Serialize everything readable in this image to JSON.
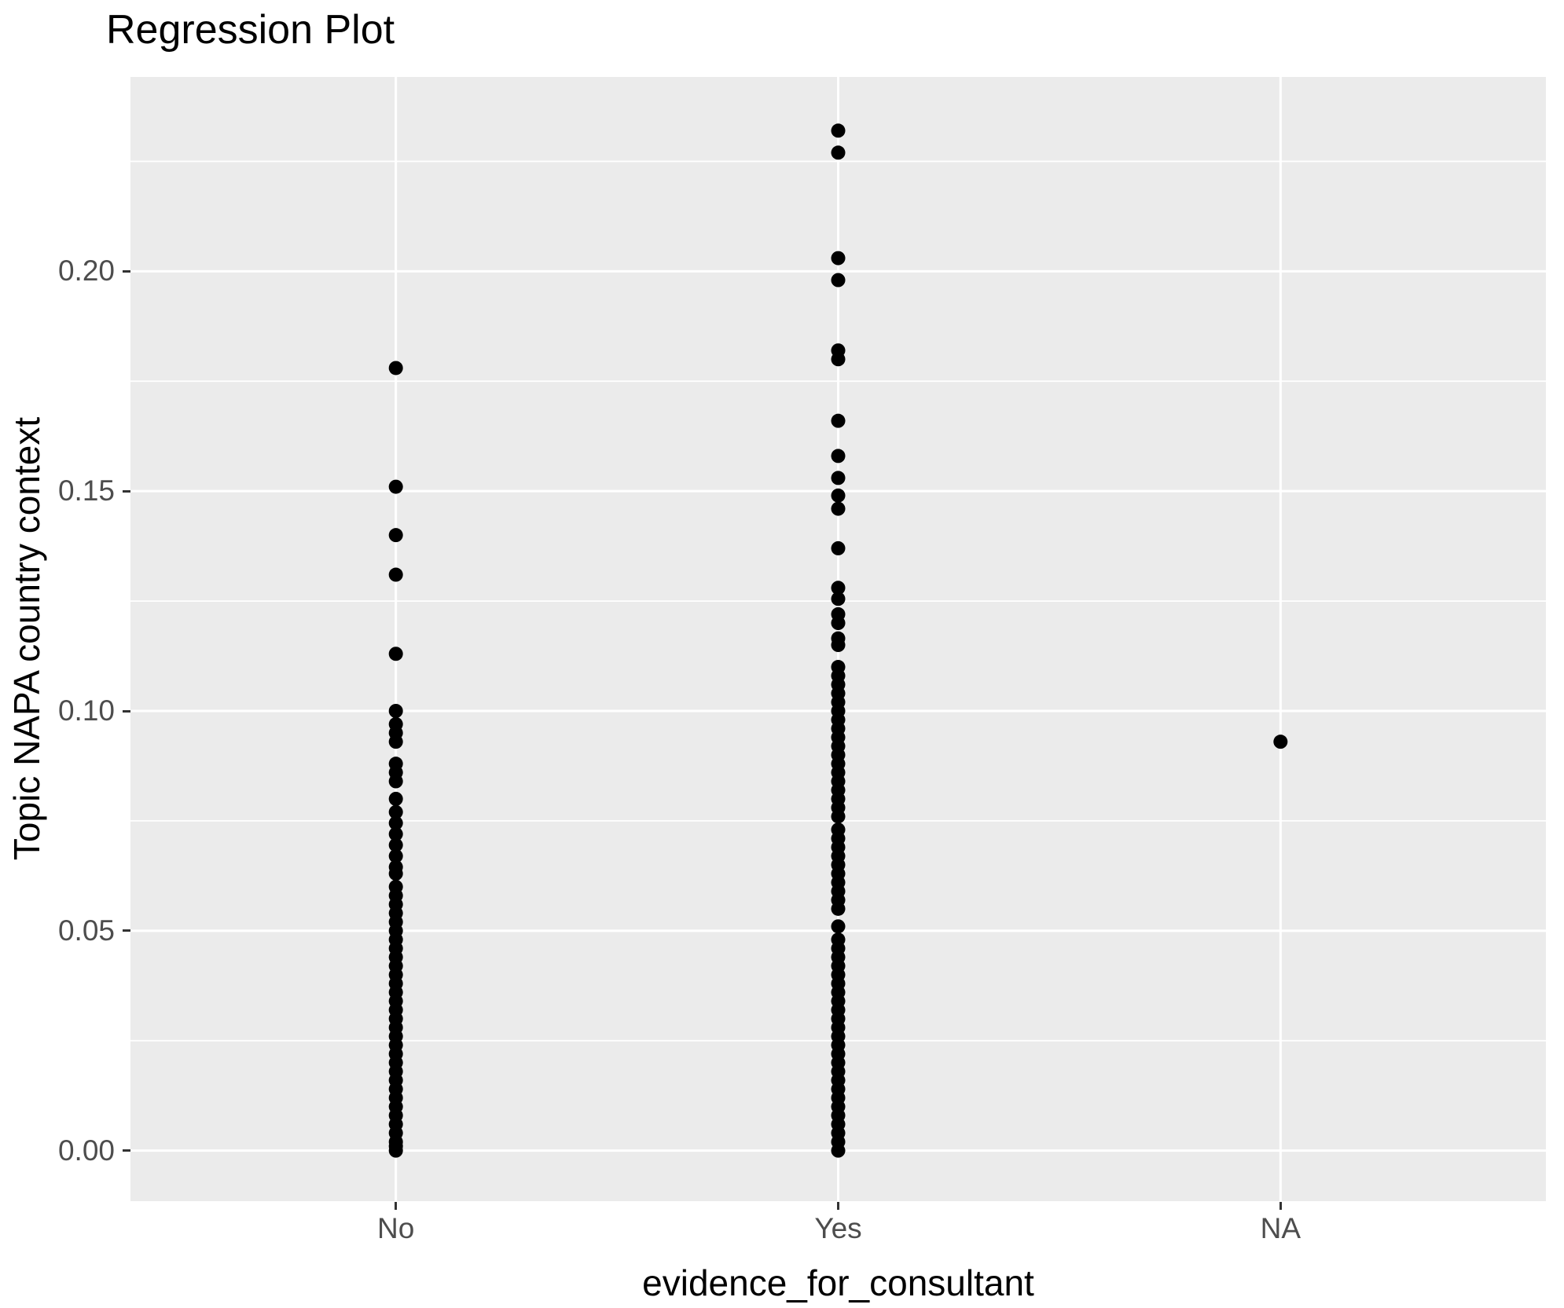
{
  "chart_data": {
    "type": "scatter",
    "title": "Regression Plot",
    "xlabel": "evidence_for_consultant",
    "ylabel": "Topic NAPA country context",
    "categories": [
      "No",
      "Yes",
      "NA"
    ],
    "y_ticks": [
      0.0,
      0.05,
      0.1,
      0.15,
      0.2
    ],
    "y_tick_labels": [
      "0.00",
      "0.05",
      "0.10",
      "0.15",
      "0.20"
    ],
    "y_minor": [
      0.025,
      0.075,
      0.125,
      0.175,
      0.225
    ],
    "ylim": [
      -0.0115,
      0.2442
    ],
    "grid": "horizontal major+minor and vertical category gridlines, white on gray panel",
    "legend": "none",
    "point_radius_px": 9,
    "series": [
      {
        "name": "No",
        "values": [
          0.178,
          0.151,
          0.14,
          0.131,
          0.113,
          0.1,
          0.097,
          0.095,
          0.093,
          0.088,
          0.086,
          0.084,
          0.08,
          0.077,
          0.0745,
          0.072,
          0.0695,
          0.067,
          0.0645,
          0.063,
          0.06,
          0.058,
          0.056,
          0.054,
          0.052,
          0.05,
          0.048,
          0.046,
          0.044,
          0.042,
          0.04,
          0.038,
          0.036,
          0.034,
          0.032,
          0.03,
          0.028,
          0.026,
          0.024,
          0.022,
          0.02,
          0.018,
          0.016,
          0.014,
          0.012,
          0.01,
          0.008,
          0.006,
          0.004,
          0.002,
          0.001,
          0.0
        ]
      },
      {
        "name": "Yes",
        "values": [
          0.232,
          0.227,
          0.203,
          0.198,
          0.182,
          0.18,
          0.166,
          0.158,
          0.153,
          0.149,
          0.146,
          0.137,
          0.128,
          0.1255,
          0.122,
          0.12,
          0.1165,
          0.115,
          0.11,
          0.108,
          0.106,
          0.104,
          0.102,
          0.1,
          0.098,
          0.096,
          0.094,
          0.092,
          0.09,
          0.088,
          0.086,
          0.084,
          0.082,
          0.08,
          0.078,
          0.076,
          0.073,
          0.071,
          0.069,
          0.067,
          0.065,
          0.063,
          0.061,
          0.059,
          0.057,
          0.055,
          0.051,
          0.048,
          0.046,
          0.044,
          0.042,
          0.04,
          0.038,
          0.036,
          0.034,
          0.032,
          0.03,
          0.028,
          0.026,
          0.024,
          0.022,
          0.02,
          0.018,
          0.016,
          0.014,
          0.012,
          0.01,
          0.008,
          0.006,
          0.004,
          0.002,
          0.0
        ]
      },
      {
        "name": "NA",
        "values": [
          0.093
        ]
      }
    ]
  },
  "style": {
    "panel_bg": "#EBEBEB",
    "grid": "#FFFFFF",
    "point": "#000000",
    "tick_label": "#4D4D4D",
    "tick_mark": "#333333",
    "title": "#000000",
    "axis_title": "#000000"
  }
}
